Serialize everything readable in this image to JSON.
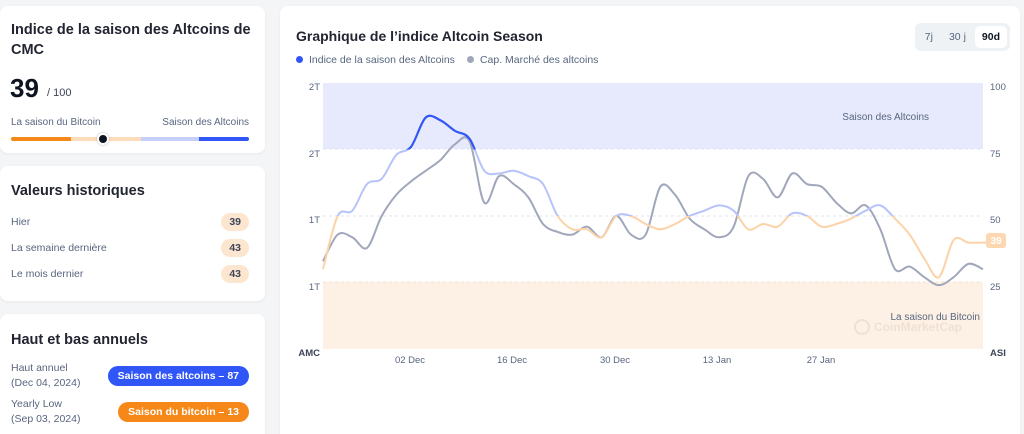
{
  "index_card": {
    "title": "Indice de la saison des Altcoins de CMC",
    "value": "39",
    "max": "/ 100",
    "left_label": "La saison du Bitcoin",
    "right_label": "Saison des Altcoins",
    "colors": {
      "bitcoin": "#f68819",
      "bitcoin_light": "#fcdcbb",
      "altcoin_light": "#c6cffa",
      "altcoin": "#3156f7",
      "knob": "#0d1421"
    }
  },
  "history_card": {
    "title": "Valeurs historiques",
    "rows": [
      {
        "label": "Hier",
        "value": "39"
      },
      {
        "label": "La semaine dernière",
        "value": "43"
      },
      {
        "label": "Le mois dernier",
        "value": "43"
      }
    ]
  },
  "yearly_card": {
    "title": "Haut et bas annuels",
    "high": {
      "label": "Haut annuel",
      "date": "(Dec 04, 2024)",
      "badge": "Saison des altcoins – 87",
      "color": "#3156f7"
    },
    "low": {
      "label": "Yearly Low",
      "date": "(Sep 03, 2024)",
      "badge": "Saison du bitcoin – 13",
      "color": "#f68819"
    }
  },
  "chart_panel": {
    "title": "Graphique de l’indice Altcoin Season",
    "legend": [
      {
        "label": "Indice de la saison des Altcoins",
        "color": "#3156f7"
      },
      {
        "label": "Cap. Marché des altcoins",
        "color": "#a1a7bb"
      }
    ],
    "tabs": [
      {
        "label": "7j",
        "active": false
      },
      {
        "label": "30 j",
        "active": false
      },
      {
        "label": "90d",
        "active": true
      }
    ],
    "left_axis_title": "AMC",
    "right_axis_title": "ASI",
    "left_ticks": [
      "2T",
      "2T",
      "1T",
      "1T"
    ],
    "right_ticks": [
      "100",
      "75",
      "50",
      "25"
    ],
    "zone_top_label": "Saison des Altcoins",
    "zone_bottom_label": "La saison du Bitcoin",
    "watermark": "CoinMarketCap",
    "current_value": "39"
  },
  "chart_data": {
    "type": "line",
    "title": "Graphique de l’indice Altcoin Season",
    "x_tick_labels": [
      "02 Dec",
      "16 Dec",
      "30 Dec",
      "13 Jan",
      "27 Jan"
    ],
    "xlabel": "",
    "ylabel_left": "AMC",
    "ylabel_right": "ASI",
    "ylim_right": [
      0,
      100
    ],
    "left_tick_labels": [
      "2T",
      "2T",
      "1T",
      "1T"
    ],
    "right_tick_labels": [
      100,
      75,
      50,
      25
    ],
    "bands": [
      {
        "label": "Saison des Altcoins",
        "from": 75,
        "to": 100,
        "color": "#e7eafd"
      },
      {
        "label": "La saison du Bitcoin",
        "from": 0,
        "to": 25,
        "color": "#fdf1e6"
      }
    ],
    "grid": false,
    "legend_position": "top-left",
    "series": [
      {
        "name": "Indice de la saison des Altcoins",
        "axis": "right",
        "x": [
          0,
          2,
          4,
          6,
          8,
          10,
          12,
          14,
          16,
          18,
          20,
          22,
          24,
          26,
          28,
          30,
          32,
          34,
          36,
          38,
          40,
          42,
          44,
          46,
          48,
          50,
          52,
          54,
          56,
          58,
          60,
          62,
          64,
          66,
          68,
          70,
          72,
          74,
          76,
          78,
          80,
          82,
          84,
          86,
          88,
          90
        ],
        "values": [
          30,
          50,
          52,
          62,
          64,
          73,
          76,
          87,
          86,
          82,
          79,
          67,
          66,
          67,
          65,
          62,
          50,
          45,
          45,
          42,
          50,
          50,
          47,
          45,
          47,
          50,
          52,
          54,
          52,
          45,
          47,
          46,
          51,
          50,
          46,
          47,
          49,
          52,
          54,
          49,
          43,
          34,
          27,
          41,
          40,
          40
        ]
      },
      {
        "name": "Cap. Marché des altcoins",
        "axis": "left",
        "x": [
          0,
          2,
          4,
          6,
          8,
          10,
          12,
          14,
          16,
          18,
          20,
          22,
          24,
          26,
          28,
          30,
          32,
          34,
          36,
          38,
          40,
          42,
          44,
          46,
          48,
          50,
          52,
          54,
          56,
          58,
          60,
          62,
          64,
          66,
          68,
          70,
          72,
          74,
          76,
          78,
          80,
          82,
          84,
          86,
          88,
          90
        ],
        "values_pixel_relative": [
          33,
          43,
          42,
          38,
          50,
          58,
          63,
          67,
          71,
          77,
          78,
          55,
          65,
          62,
          57,
          47,
          44,
          43,
          46,
          42,
          50,
          43,
          43,
          61,
          58,
          49,
          45,
          42,
          46,
          65,
          64,
          57,
          66,
          62,
          61,
          55,
          51,
          54,
          45,
          30,
          31,
          27,
          24,
          27,
          32,
          30
        ]
      }
    ]
  }
}
